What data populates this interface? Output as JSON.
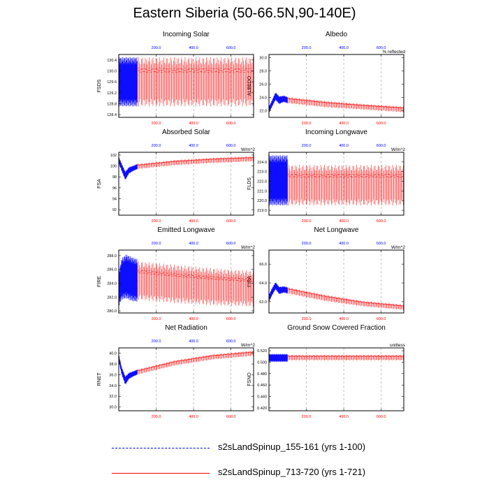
{
  "title": "Eastern Siberia (50-66.5N,90-140E)",
  "colors": {
    "series1": "#0000ff",
    "series2": "#ff0000",
    "grid": "#999999"
  },
  "legend": [
    {
      "label": "s2sLandSpinup_155-161 (yrs 1-100)",
      "color": "#0000ff",
      "style": "dashed"
    },
    {
      "label": "s2sLandSpinup_713-720 (yrs 1-721)",
      "color": "#ff0000",
      "style": "solid"
    }
  ],
  "chart_data": [
    {
      "type": "line",
      "title": "Incoming Solar",
      "ylabel": "FSDS",
      "units": "",
      "xlim": [
        0,
        721
      ],
      "ylim": [
        128.3,
        130.6
      ],
      "yticks": [
        "128.4",
        "128.8",
        "129.2",
        "129.6",
        "130.0",
        "130.4"
      ],
      "xticks_top": [
        "200.0",
        "400.0",
        "600.0"
      ],
      "xticks_bottom": [
        "200.0",
        "400.0",
        "600.0"
      ],
      "series": [
        {
          "name": "s2sLandSpinup_155-161 (yrs 1-100)",
          "x": [
            1,
            100
          ],
          "trend": [
            129.6,
            129.6
          ],
          "amplitude": [
            0.9,
            0.9
          ]
        },
        {
          "name": "s2sLandSpinup_713-720 (yrs 1-721)",
          "x": [
            100,
            721
          ],
          "trend": [
            129.6,
            129.6
          ],
          "amplitude": [
            0.9,
            0.9
          ]
        }
      ]
    },
    {
      "type": "line",
      "title": "Albedo",
      "ylabel": "ALBEDO",
      "units": "% reflected",
      "xlim": [
        0,
        721
      ],
      "ylim": [
        21.0,
        30.5
      ],
      "yticks": [
        "22.0",
        "24.0",
        "26.0",
        "28.0",
        "30.0"
      ],
      "xticks_top": [
        "200.0",
        "400.0",
        "600.0"
      ],
      "xticks_bottom": [
        "200.0",
        "400.0",
        "600.0"
      ],
      "series": [
        {
          "name": "s2sLandSpinup_155-161 (yrs 1-100)",
          "x": [
            1,
            15,
            35,
            55,
            80,
            100
          ],
          "trend": [
            22.2,
            23.0,
            24.2,
            23.6,
            23.8,
            23.6
          ],
          "amplitude": [
            0.5,
            0.5,
            0.6,
            0.6,
            0.5,
            0.5
          ]
        },
        {
          "name": "s2sLandSpinup_713-720 (yrs 1-721)",
          "x": [
            100,
            300,
            500,
            721
          ],
          "trend": [
            23.6,
            23.0,
            22.6,
            22.2
          ],
          "amplitude": [
            0.5,
            0.5,
            0.45,
            0.45
          ]
        }
      ]
    },
    {
      "type": "line",
      "title": "Absorbed Solar",
      "ylabel": "FSA",
      "units": "W/m^2",
      "xlim": [
        0,
        721
      ],
      "ylim": [
        91,
        102.5
      ],
      "yticks": [
        "92",
        "94",
        "96",
        "98",
        "100",
        "102"
      ],
      "xticks_top": [
        "200.0",
        "400.0",
        "600.0"
      ],
      "xticks_bottom": [
        "200.0",
        "400.0",
        "600.0"
      ],
      "series": [
        {
          "name": "s2sLandSpinup_155-161 (yrs 1-100)",
          "x": [
            1,
            15,
            35,
            55,
            80,
            100
          ],
          "trend": [
            101.0,
            99.8,
            98.2,
            99.2,
            99.6,
            99.9
          ],
          "amplitude": [
            0.6,
            0.7,
            0.8,
            0.6,
            0.5,
            0.5
          ]
        },
        {
          "name": "s2sLandSpinup_713-720 (yrs 1-721)",
          "x": [
            100,
            300,
            500,
            721
          ],
          "trend": [
            99.9,
            100.6,
            101.0,
            101.3
          ],
          "amplitude": [
            0.5,
            0.5,
            0.5,
            0.5
          ]
        }
      ]
    },
    {
      "type": "line",
      "title": "Incoming Longwave",
      "ylabel": "FLDS",
      "units": "W/m^2",
      "xlim": [
        0,
        721
      ],
      "ylim": [
        218.5,
        225.0
      ],
      "yticks": [
        "219.0",
        "220.0",
        "221.0",
        "222.0",
        "223.0",
        "224.0"
      ],
      "xticks_top": [
        "200.0",
        "400.0",
        "600.0"
      ],
      "xticks_bottom": [
        "200.0",
        "400.0",
        "600.0"
      ],
      "series": [
        {
          "name": "s2sLandSpinup_155-161 (yrs 1-100)",
          "x": [
            1,
            100
          ],
          "trend": [
            222.1,
            222.1
          ],
          "amplitude": [
            2.6,
            2.6
          ]
        },
        {
          "name": "s2sLandSpinup_713-720 (yrs 1-721)",
          "x": [
            100,
            721
          ],
          "trend": [
            221.6,
            221.6
          ],
          "amplitude": [
            2.1,
            2.1
          ]
        }
      ]
    },
    {
      "type": "line",
      "title": "Emitted Longwave",
      "ylabel": "FIRE",
      "units": "W/m^2",
      "xlim": [
        0,
        721
      ],
      "ylim": [
        279.7,
        288.8
      ],
      "yticks": [
        "280.0",
        "282.0",
        "284.0",
        "286.0",
        "288.0"
      ],
      "xticks_top": [
        "200.0",
        "400.0",
        "600.0"
      ],
      "xticks_bottom": [
        "200.0",
        "400.0",
        "600.0"
      ],
      "series": [
        {
          "name": "s2sLandSpinup_155-161 (yrs 1-100)",
          "x": [
            1,
            15,
            40,
            70,
            100
          ],
          "trend": [
            283.2,
            284.6,
            285.0,
            284.6,
            284.4
          ],
          "amplitude": [
            2.5,
            3.0,
            3.2,
            3.2,
            3.1
          ]
        },
        {
          "name": "s2sLandSpinup_713-720 (yrs 1-721)",
          "x": [
            100,
            300,
            500,
            721
          ],
          "trend": [
            284.4,
            283.9,
            283.5,
            283.2
          ],
          "amplitude": [
            2.8,
            2.8,
            2.7,
            2.6
          ]
        }
      ]
    },
    {
      "type": "line",
      "title": "Net Longwave",
      "ylabel": "FIRA",
      "units": "W/m^2",
      "xlim": [
        0,
        721
      ],
      "ylim": [
        60.8,
        67.5
      ],
      "yticks": [
        "62.0",
        "64.0",
        "66.0"
      ],
      "xticks_top": [
        "200.0",
        "400.0",
        "600.0"
      ],
      "xticks_bottom": [
        "200.0",
        "400.0",
        "600.0"
      ],
      "series": [
        {
          "name": "s2sLandSpinup_155-161 (yrs 1-100)",
          "x": [
            1,
            15,
            35,
            55,
            80,
            100
          ],
          "trend": [
            62.4,
            63.0,
            63.7,
            63.2,
            63.3,
            63.2
          ],
          "amplitude": [
            0.4,
            0.4,
            0.4,
            0.4,
            0.35,
            0.35
          ]
        },
        {
          "name": "s2sLandSpinup_713-720 (yrs 1-721)",
          "x": [
            100,
            300,
            500,
            721
          ],
          "trend": [
            63.2,
            62.4,
            61.8,
            61.4
          ],
          "amplitude": [
            0.35,
            0.35,
            0.3,
            0.3
          ]
        }
      ]
    },
    {
      "type": "line",
      "title": "Net Radiation",
      "ylabel": "RNET",
      "units": "W/m^2",
      "xlim": [
        0,
        721
      ],
      "ylim": [
        29.3,
        41.0
      ],
      "yticks": [
        "30.0",
        "32.0",
        "34.0",
        "36.0",
        "38.0",
        "40.0"
      ],
      "xticks_top": [
        "200.0",
        "400.0",
        "600.0"
      ],
      "xticks_bottom": [
        "200.0",
        "400.0",
        "600.0"
      ],
      "series": [
        {
          "name": "s2sLandSpinup_155-161 (yrs 1-100)",
          "x": [
            1,
            15,
            35,
            55,
            80,
            100
          ],
          "trend": [
            39.0,
            36.8,
            34.9,
            35.8,
            36.2,
            36.5
          ],
          "amplitude": [
            0.7,
            0.7,
            0.8,
            0.6,
            0.5,
            0.5
          ]
        },
        {
          "name": "s2sLandSpinup_713-720 (yrs 1-721)",
          "x": [
            100,
            300,
            500,
            721
          ],
          "trend": [
            36.5,
            38.2,
            39.3,
            40.0
          ],
          "amplitude": [
            0.5,
            0.5,
            0.5,
            0.5
          ]
        }
      ]
    },
    {
      "type": "line",
      "title": "Ground Snow Covered Fraction",
      "ylabel": "FSNO",
      "units": "unitless",
      "xlim": [
        0,
        721
      ],
      "ylim": [
        0.415,
        0.525
      ],
      "yticks": [
        "0.420",
        "0.440",
        "0.460",
        "0.480",
        "0.500",
        "0.520"
      ],
      "xticks_top": [],
      "xticks_bottom": [
        "200.0",
        "400.0",
        "600.0"
      ],
      "series": [
        {
          "name": "s2sLandSpinup_155-161 (yrs 1-100)",
          "x": [
            1,
            100
          ],
          "trend": [
            0.5075,
            0.5075
          ],
          "amplitude": [
            0.007,
            0.007
          ]
        },
        {
          "name": "s2sLandSpinup_713-720 (yrs 1-721)",
          "x": [
            100,
            721
          ],
          "trend": [
            0.508,
            0.508
          ],
          "amplitude": [
            0.005,
            0.005
          ]
        }
      ]
    }
  ]
}
